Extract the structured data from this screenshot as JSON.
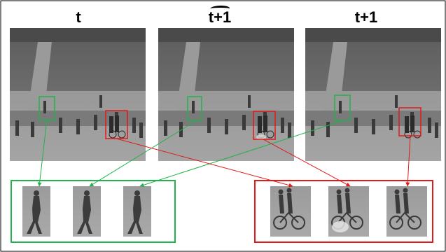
{
  "frames": [
    {
      "title": "t",
      "decoration": "none"
    },
    {
      "title": "t+1",
      "decoration": "tilde"
    },
    {
      "title": "t+1",
      "decoration": "none"
    }
  ],
  "colors": {
    "green": "#22b14c",
    "red": "#e01b1b",
    "frame_border": "#000000"
  },
  "crops": {
    "green_group_count": 3,
    "red_group_count": 3
  }
}
